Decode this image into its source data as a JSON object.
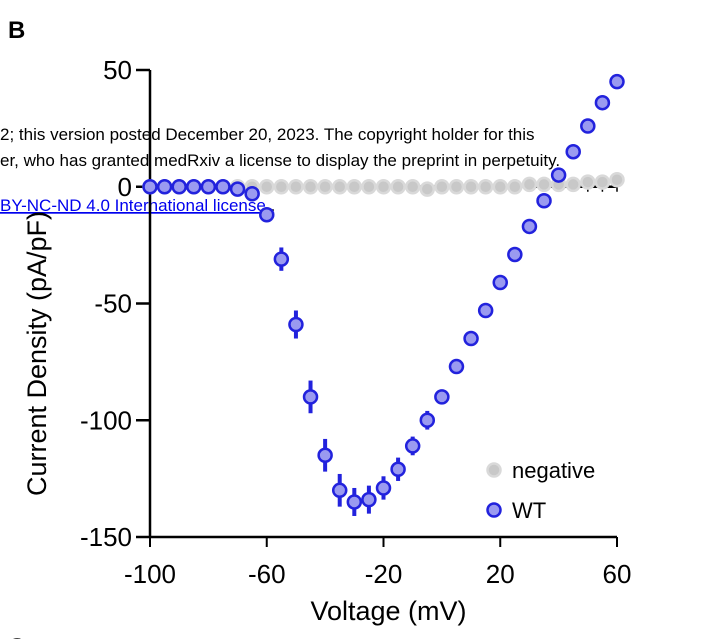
{
  "panel_label": "B",
  "panel_label_next": "C",
  "watermark": {
    "line1": "2; this version posted December 20, 2023. The copyright holder for this",
    "line2": "er, who has granted medRxiv a license to display the preprint in perpetuity.",
    "line3": "BY-NC-ND 4.0 International license",
    "line3_suffix": " .",
    "link_color": "#0000ee",
    "text_color": "#000000"
  },
  "chart_data": {
    "type": "scatter",
    "title": "",
    "xlabel": "Voltage (mV)",
    "ylabel": "Current Density (pA/pF)",
    "xlim": [
      -100,
      60
    ],
    "ylim": [
      -150,
      50
    ],
    "x_ticks": [
      -100,
      -60,
      -20,
      20,
      60
    ],
    "x_tick_labels": [
      "-100",
      "-60",
      "-20",
      "20",
      "60"
    ],
    "y_ticks": [
      -150,
      -100,
      -50,
      0,
      50
    ],
    "y_tick_labels": [
      "-150",
      "-100",
      "-50",
      "0",
      "50"
    ],
    "grid": false,
    "legend_position": "bottom-right",
    "x": [
      -100,
      -95,
      -90,
      -85,
      -80,
      -75,
      -70,
      -65,
      -60,
      -55,
      -50,
      -45,
      -40,
      -35,
      -30,
      -25,
      -20,
      -15,
      -10,
      -5,
      0,
      5,
      10,
      15,
      20,
      25,
      30,
      35,
      40,
      45,
      50,
      55,
      60
    ],
    "series": [
      {
        "name": "negative",
        "color": "#c8c8c8",
        "edge_color": "#d9d9d9",
        "values": [
          0,
          0,
          0,
          0,
          0,
          0,
          0,
          0,
          0,
          0,
          0,
          0,
          0,
          0,
          0,
          0,
          0,
          0,
          0,
          -1,
          0,
          0,
          0,
          0,
          0,
          0,
          1,
          1,
          1,
          1,
          2,
          2,
          3
        ],
        "errors": [
          0.5,
          0.5,
          0.5,
          0.5,
          0.5,
          0.5,
          0.5,
          0.5,
          0.5,
          0.5,
          0.5,
          0.5,
          0.5,
          0.5,
          0.5,
          0.5,
          0.5,
          0.5,
          0.5,
          0.5,
          0.5,
          0.5,
          0.5,
          0.5,
          0.5,
          0.5,
          0.5,
          0.5,
          0.5,
          0.5,
          0.5,
          0.5,
          0.5
        ]
      },
      {
        "name": "WT",
        "color": "#9a9af0",
        "edge_color": "#2222dd",
        "values": [
          0,
          0,
          0,
          0,
          0,
          0,
          -1,
          -3,
          -12,
          -31,
          -59,
          -90,
          -115,
          -130,
          -135,
          -134,
          -129,
          -121,
          -111,
          -100,
          -90,
          -77,
          -65,
          -53,
          -41,
          -29,
          -17,
          -6,
          5,
          15,
          26,
          36,
          45
        ],
        "errors": [
          0.5,
          0.5,
          0.5,
          0.5,
          0.5,
          0.5,
          1,
          2,
          3,
          5,
          6,
          7,
          7,
          7,
          6,
          6,
          5,
          5,
          4,
          4,
          3,
          3,
          2,
          2,
          2,
          2,
          2,
          2,
          2,
          2,
          2,
          2,
          2
        ]
      }
    ]
  }
}
